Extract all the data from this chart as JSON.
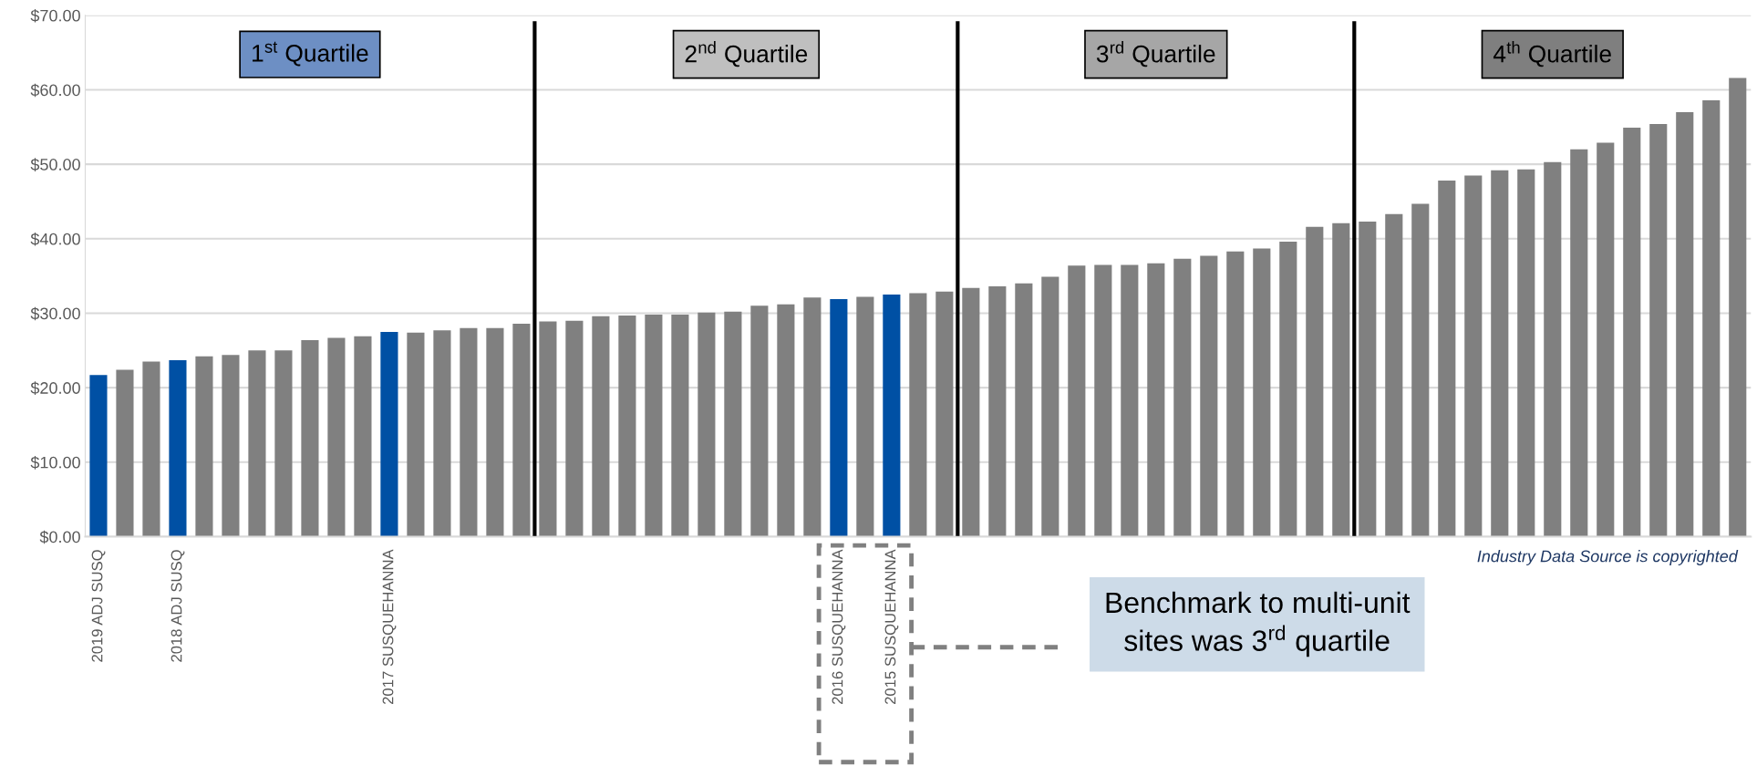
{
  "chart_data": {
    "type": "bar",
    "categories": [
      "2019 ADJ SUSQ",
      null,
      null,
      "2018 ADJ SUSQ",
      null,
      null,
      null,
      null,
      null,
      null,
      null,
      "2017 SUSQUEHANNA",
      null,
      null,
      null,
      null,
      null,
      null,
      null,
      null,
      null,
      null,
      null,
      null,
      null,
      null,
      null,
      null,
      "2016 SUSQUEHANNA",
      null,
      "2015 SUSQUEHANNA",
      null,
      null,
      null,
      null,
      null,
      null,
      null,
      null,
      null,
      null,
      null,
      null,
      null,
      null,
      null,
      null,
      null,
      null,
      null,
      null,
      null,
      null,
      null,
      null,
      null,
      null,
      null,
      null,
      null,
      null,
      null,
      null
    ],
    "values": [
      21.7,
      22.4,
      23.5,
      23.7,
      24.2,
      24.4,
      25.0,
      25.0,
      26.4,
      26.7,
      26.9,
      27.5,
      27.4,
      27.7,
      28.0,
      28.0,
      28.6,
      28.9,
      29.0,
      29.6,
      29.7,
      29.8,
      29.8,
      30.1,
      30.2,
      31.0,
      31.2,
      32.1,
      31.9,
      32.2,
      32.5,
      32.7,
      32.9,
      33.4,
      33.6,
      34.0,
      34.9,
      36.4,
      36.5,
      36.5,
      36.7,
      37.3,
      37.7,
      38.3,
      38.7,
      39.6,
      41.6,
      42.1,
      42.3,
      43.3,
      44.7,
      47.8,
      48.5,
      49.2,
      49.3,
      50.3,
      52.0,
      52.9,
      54.9,
      55.4,
      57.0,
      58.6,
      61.6
    ],
    "colors": [
      "#0050a4",
      "#808080",
      "#808080",
      "#0050a4",
      "#808080",
      "#808080",
      "#808080",
      "#808080",
      "#808080",
      "#808080",
      "#808080",
      "#0050a4",
      "#808080",
      "#808080",
      "#808080",
      "#808080",
      "#808080",
      "#808080",
      "#808080",
      "#808080",
      "#808080",
      "#808080",
      "#808080",
      "#808080",
      "#808080",
      "#808080",
      "#808080",
      "#808080",
      "#0050a4",
      "#808080",
      "#0050a4",
      "#808080",
      "#808080",
      "#808080",
      "#808080",
      "#808080",
      "#808080",
      "#808080",
      "#808080",
      "#808080",
      "#808080",
      "#808080",
      "#808080",
      "#808080",
      "#808080",
      "#808080",
      "#808080",
      "#808080",
      "#808080",
      "#808080",
      "#808080",
      "#808080",
      "#808080",
      "#808080",
      "#808080",
      "#808080",
      "#808080",
      "#808080",
      "#808080",
      "#808080",
      "#808080",
      "#808080",
      "#808080"
    ],
    "ylim": [
      0,
      70
    ],
    "yticks": [
      {
        "value": 0,
        "label": "$0.00"
      },
      {
        "value": 10,
        "label": "$10.00"
      },
      {
        "value": 20,
        "label": "$20.00"
      },
      {
        "value": 30,
        "label": "$30.00"
      },
      {
        "value": 40,
        "label": "$40.00"
      },
      {
        "value": 50,
        "label": "$50.00"
      },
      {
        "value": 60,
        "label": "$60.00"
      },
      {
        "value": 70,
        "label": "$70.00"
      }
    ],
    "grid": "y",
    "annotations": [
      "1$^{st}$ Quartile",
      "2$^{nd}$ Quartile",
      "3$^{rd}$ Quartile",
      "4$^{th}$ Quartile",
      "Benchmark to multi-unit\nsites was 3$^{rd}$ quartile",
      "Industry Data Source is copyrighted"
    ]
  }
}
